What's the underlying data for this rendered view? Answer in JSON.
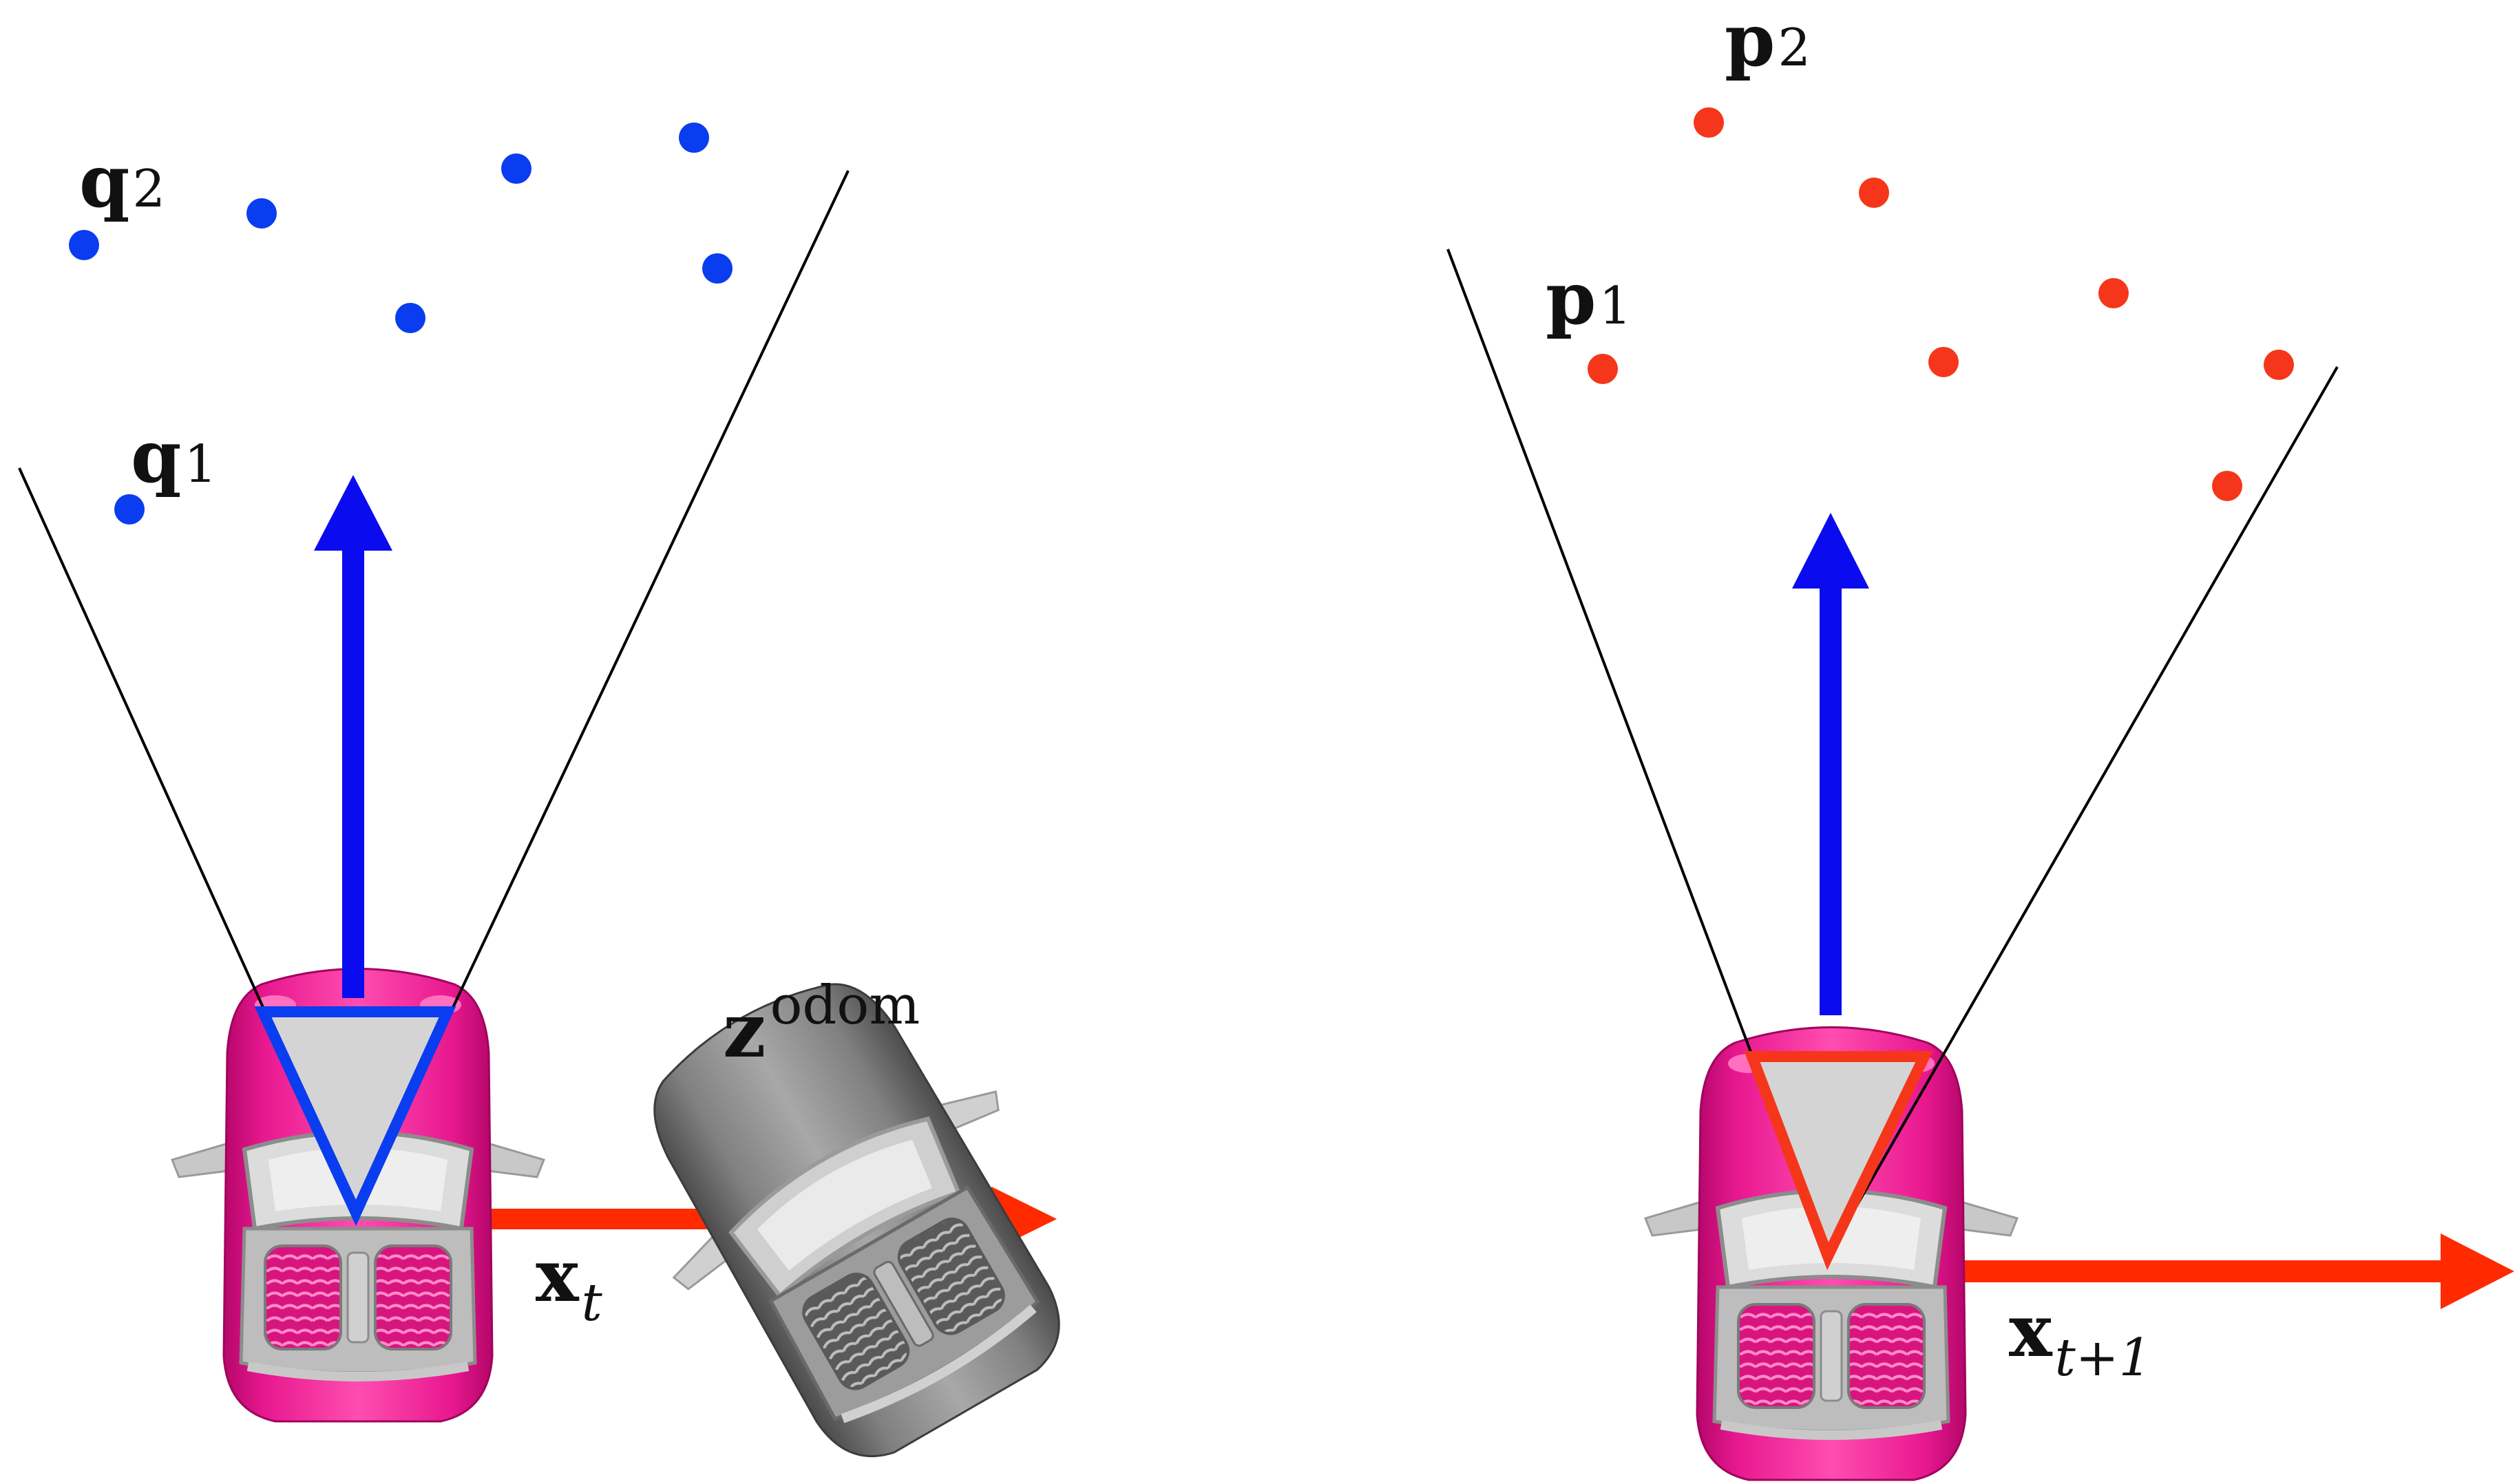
{
  "labels": {
    "q1_base": "q",
    "q1_sub": "1",
    "q2_base": "q",
    "q2_sub": "2",
    "p1_base": "p",
    "p1_sub": "1",
    "p2_base": "p",
    "p2_sub": "2",
    "xt_base": "x",
    "xt_sub": "t",
    "xt1_base": "x",
    "xt1_sub": "t+1",
    "z_base": "z",
    "z_sup": "odom"
  },
  "colors": {
    "blue_points": "#0a3cf0",
    "red_points": "#f5361a",
    "blue_axis": "#0b0bf0",
    "red_axis": "#ff2a00",
    "car_pink": "#e8188f",
    "car_gray": "#7a7a7a",
    "camera_fill": "#d4d4d4",
    "fov_line": "#000000"
  },
  "icons": {
    "car_t": "pink-car-icon",
    "car_t1": "pink-car-icon",
    "car_odom": "gray-car-icon"
  }
}
